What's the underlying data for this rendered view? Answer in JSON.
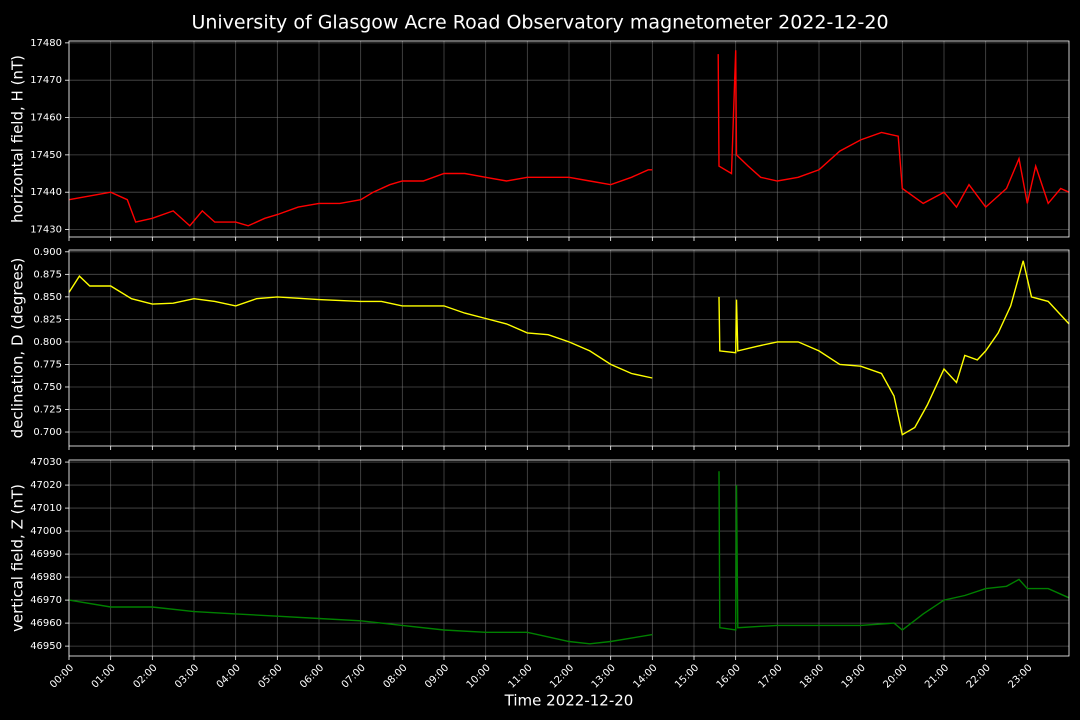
{
  "chart_data": [
    {
      "type": "line",
      "title": "University of Glasgow Acre Road Observatory magnetometer 2022-12-20",
      "ylabel": "horizontal field, H (nT)",
      "color": "#ff0000",
      "grid": true,
      "xlim": [
        0,
        24
      ],
      "ylim": [
        17428,
        17480.5
      ],
      "yticks": [
        17430,
        17440,
        17450,
        17460,
        17470,
        17480
      ],
      "x": [
        0,
        0.5,
        1,
        1.4,
        1.6,
        2,
        2.5,
        2.9,
        3.2,
        3.5,
        4,
        4.3,
        4.7,
        5,
        5.5,
        6,
        6.5,
        7,
        7.3,
        7.7,
        8,
        8.5,
        9,
        9.5,
        10,
        10.5,
        11,
        11.5,
        12,
        12.5,
        13,
        13.5,
        13.9,
        14,
        14.5,
        15.58,
        15.6,
        15.9,
        16.0,
        16.02,
        16.3,
        16.6,
        17,
        17.5,
        18,
        18.5,
        19,
        19.5,
        19.9,
        20,
        20.5,
        21,
        21.3,
        21.6,
        22,
        22.5,
        22.8,
        23.0,
        23.2,
        23.5,
        23.8,
        24
      ],
      "values": [
        17438,
        17439,
        17440,
        17438,
        17432,
        17433,
        17435,
        17431,
        17435,
        17432,
        17432,
        17431,
        17433,
        17434,
        17436,
        17437,
        17437,
        17438,
        17440,
        17442,
        17443,
        17443,
        17445,
        17445,
        17444,
        17443,
        17444,
        17444,
        17444,
        17443,
        17442,
        17444,
        17446,
        17446,
        null,
        17477,
        17447,
        17445,
        17478,
        17450,
        17447,
        17444,
        17443,
        17444,
        17446,
        17451,
        17454,
        17456,
        17455,
        17441,
        17437,
        17440,
        17436,
        17442,
        17436,
        17441,
        17449,
        17437,
        17447,
        17437,
        17441,
        17440
      ]
    },
    {
      "type": "line",
      "ylabel": "declination, D (degrees)",
      "color": "#ffff00",
      "grid": true,
      "xlim": [
        0,
        24
      ],
      "ylim": [
        0.6845,
        0.902
      ],
      "yticks": [
        {
          "value": 0.7,
          "label": "0.700"
        },
        {
          "value": 0.725,
          "label": "0.725"
        },
        {
          "value": 0.75,
          "label": "0.750"
        },
        {
          "value": 0.775,
          "label": "0.775"
        },
        {
          "value": 0.8,
          "label": "0.800"
        },
        {
          "value": 0.825,
          "label": "0.825"
        },
        {
          "value": 0.85,
          "label": "0.850"
        },
        {
          "value": 0.875,
          "label": "0.875"
        },
        {
          "value": 0.9,
          "label": "0.900"
        }
      ],
      "x": [
        0,
        0.25,
        0.5,
        1,
        1.5,
        2,
        2.5,
        3,
        3.5,
        4,
        4.5,
        5,
        6,
        7,
        7.5,
        8,
        8.5,
        9,
        9.5,
        10,
        10.5,
        11,
        11.5,
        12,
        12.5,
        13,
        13.5,
        14,
        14.5,
        15.6,
        15.62,
        16,
        16.02,
        16.05,
        16.5,
        17,
        17.5,
        18,
        18.5,
        19,
        19.5,
        19.8,
        20,
        20.3,
        20.6,
        21,
        21.3,
        21.5,
        21.8,
        22,
        22.3,
        22.6,
        22.9,
        23.1,
        23.5,
        24
      ],
      "values": [
        0.855,
        0.873,
        0.862,
        0.862,
        0.848,
        0.842,
        0.843,
        0.848,
        0.845,
        0.84,
        0.848,
        0.85,
        0.847,
        0.845,
        0.845,
        0.84,
        0.84,
        0.84,
        0.832,
        0.826,
        0.82,
        0.81,
        0.808,
        0.8,
        0.79,
        0.775,
        0.765,
        0.76,
        null,
        0.85,
        0.79,
        0.788,
        0.847,
        0.79,
        0.795,
        0.8,
        0.8,
        0.79,
        0.775,
        0.773,
        0.765,
        0.74,
        0.697,
        0.705,
        0.73,
        0.77,
        0.755,
        0.785,
        0.78,
        0.79,
        0.81,
        0.84,
        0.89,
        0.85,
        0.845,
        0.82
      ]
    },
    {
      "type": "line",
      "ylabel": "vertical field, Z (nT)",
      "xlabel": "Time 2022-12-20",
      "color": "#008000",
      "grid": true,
      "xlim": [
        0,
        24
      ],
      "ylim": [
        46945.7,
        47030.9
      ],
      "yticks": [
        46950,
        46960,
        46970,
        46980,
        46990,
        47000,
        47010,
        47020,
        47030
      ],
      "xticks": [
        {
          "value": 0,
          "label": "00:00"
        },
        {
          "value": 1,
          "label": "01:00"
        },
        {
          "value": 2,
          "label": "02:00"
        },
        {
          "value": 3,
          "label": "03:00"
        },
        {
          "value": 4,
          "label": "04:00"
        },
        {
          "value": 5,
          "label": "05:00"
        },
        {
          "value": 6,
          "label": "06:00"
        },
        {
          "value": 7,
          "label": "07:00"
        },
        {
          "value": 8,
          "label": "08:00"
        },
        {
          "value": 9,
          "label": "09:00"
        },
        {
          "value": 10,
          "label": "10:00"
        },
        {
          "value": 11,
          "label": "11:00"
        },
        {
          "value": 12,
          "label": "12:00"
        },
        {
          "value": 13,
          "label": "13:00"
        },
        {
          "value": 14,
          "label": "14:00"
        },
        {
          "value": 15,
          "label": "15:00"
        },
        {
          "value": 16,
          "label": "16:00"
        },
        {
          "value": 17,
          "label": "17:00"
        },
        {
          "value": 18,
          "label": "18:00"
        },
        {
          "value": 19,
          "label": "19:00"
        },
        {
          "value": 20,
          "label": "20:00"
        },
        {
          "value": 21,
          "label": "21:00"
        },
        {
          "value": 22,
          "label": "22:00"
        },
        {
          "value": 23,
          "label": "23:00"
        }
      ],
      "x": [
        0,
        1,
        2,
        3,
        4,
        5,
        6,
        7,
        8,
        9,
        10,
        11,
        12,
        12.5,
        13,
        14,
        14.5,
        15.6,
        15.62,
        16,
        16.02,
        16.05,
        17,
        18,
        19,
        19.8,
        20,
        20.5,
        21,
        21.5,
        22,
        22.5,
        22.8,
        23,
        23.5,
        24
      ],
      "values": [
        46970,
        46967,
        46967,
        46965,
        46964,
        46963,
        46962,
        46961,
        46959,
        46957,
        46956,
        46956,
        46952,
        46951,
        46952,
        46955,
        null,
        47026,
        46958,
        46957,
        47020,
        46958,
        46959,
        46959,
        46959,
        46960,
        46957,
        46964,
        46970,
        46972,
        46975,
        46976,
        46979,
        46975,
        46975,
        46971
      ]
    }
  ]
}
